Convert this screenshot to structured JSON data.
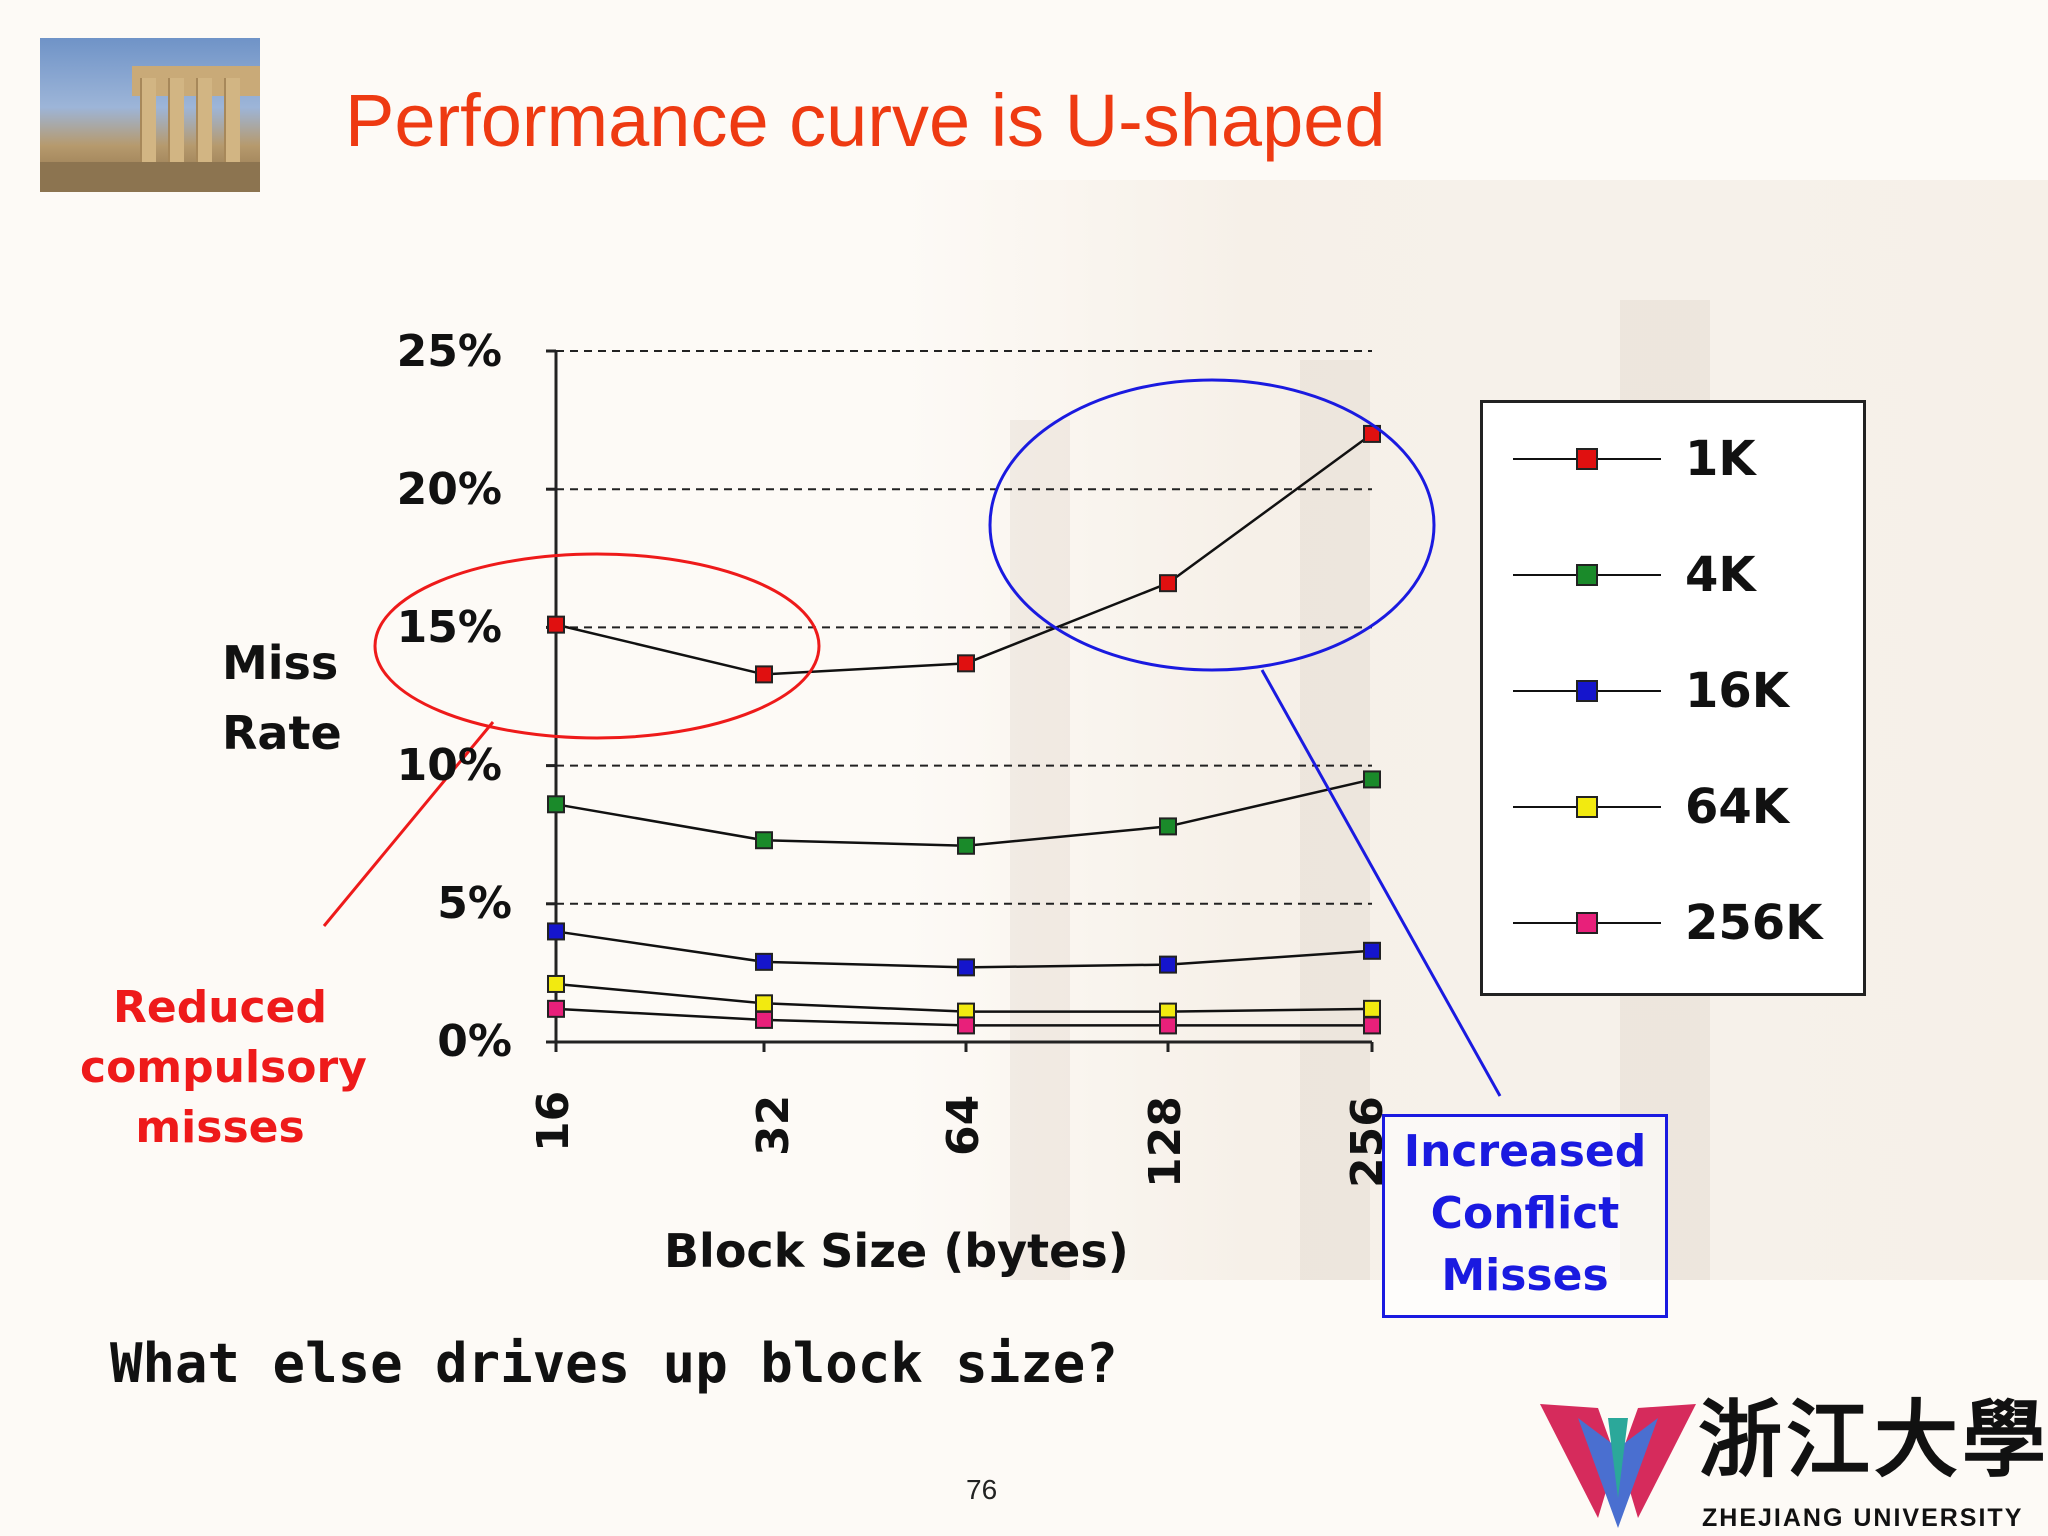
{
  "slide": {
    "title": "Performance curve is U-shaped",
    "question": "What else drives up block size?",
    "page_number": "76",
    "logo_cn": "浙江大學",
    "logo_en": "ZHEJIANG UNIVERSITY"
  },
  "annotations": {
    "red_note_lines": [
      "Reduced",
      "compulsory",
      "misses"
    ],
    "blue_note_lines": [
      "Increased",
      "Conflict",
      "Misses"
    ],
    "colors": {
      "red": "#ee1a1a",
      "blue": "#1a1ae0",
      "title": "#ee3a12"
    }
  },
  "chart_data": {
    "type": "line",
    "title": "",
    "xlabel": "Block Size (bytes)",
    "ylabel_lines": [
      "Miss",
      "Rate"
    ],
    "x": [
      16,
      32,
      64,
      128,
      256
    ],
    "x_tick_labels": [
      "16",
      "32",
      "64",
      "128",
      "256"
    ],
    "y_tick_labels": [
      "25%",
      "20%",
      "15%",
      "10%",
      "5%",
      "0%"
    ],
    "ylim": [
      0,
      25
    ],
    "grid": "horizontal dashed",
    "legend_position": "right",
    "series": [
      {
        "name": "1K",
        "color": "#e01010",
        "values": [
          15.1,
          13.3,
          13.7,
          16.6,
          22.0
        ]
      },
      {
        "name": "4K",
        "color": "#1a8a2a",
        "values": [
          8.6,
          7.3,
          7.1,
          7.8,
          9.5
        ]
      },
      {
        "name": "16K",
        "color": "#1515cc",
        "values": [
          4.0,
          2.9,
          2.7,
          2.8,
          3.3
        ]
      },
      {
        "name": "64K",
        "color": "#f2ea10",
        "values": [
          2.1,
          1.4,
          1.1,
          1.1,
          1.2
        ]
      },
      {
        "name": "256K",
        "color": "#e8207a",
        "values": [
          1.2,
          0.8,
          0.6,
          0.6,
          0.6
        ]
      }
    ]
  }
}
